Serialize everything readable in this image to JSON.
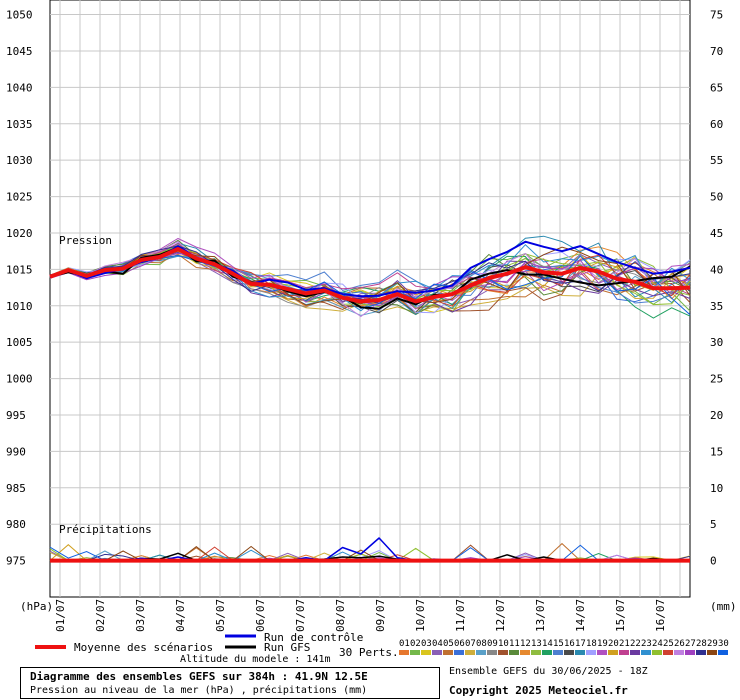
{
  "chart_data": {
    "type": "line",
    "left_axis": {
      "unit": "(hPa)",
      "ticks": [
        1050,
        1045,
        1040,
        1035,
        1030,
        1025,
        1020,
        1015,
        1010,
        1005,
        1000,
        995,
        990,
        985,
        980,
        975
      ],
      "range": [
        970,
        1052
      ]
    },
    "right_axis": {
      "unit": "(mm)",
      "ticks": [
        75,
        70,
        65,
        60,
        55,
        50,
        45,
        40,
        35,
        30,
        25,
        20,
        15,
        10,
        5,
        0
      ]
    },
    "x_axis": {
      "ticks": [
        "01/07",
        "02/07",
        "03/07",
        "04/07",
        "05/07",
        "06/07",
        "07/07",
        "08/07",
        "09/07",
        "10/07",
        "11/07",
        "12/07",
        "13/07",
        "14/07",
        "15/07",
        "16/07"
      ]
    },
    "section_labels": {
      "pressure": "Pression",
      "precip": "Précipitations"
    },
    "legend": {
      "mean": "Moyenne des scénarios",
      "control": "Run de contrôle",
      "gfs": "Run GFS",
      "perts": "30 Perts.",
      "pert_ids": [
        "01",
        "02",
        "03",
        "04",
        "05",
        "06",
        "07",
        "08",
        "09",
        "10",
        "11",
        "12",
        "13",
        "14",
        "15",
        "16",
        "17",
        "18",
        "19",
        "20",
        "21",
        "22",
        "23",
        "24",
        "25",
        "26",
        "27",
        "28",
        "29",
        "30"
      ]
    },
    "pert_colors": [
      "#e6772e",
      "#74b84a",
      "#d9c51e",
      "#8a5fb5",
      "#c07030",
      "#3a6fd8",
      "#cfae3a",
      "#5aa0c8",
      "#888888",
      "#a0522d",
      "#5a8a3a",
      "#e6892f",
      "#8fbc3f",
      "#20a060",
      "#4d7fd0",
      "#4a4a4a",
      "#2a8ab0",
      "#a0a0ff",
      "#b050c0",
      "#d0a020",
      "#c04090",
      "#6a3aa0",
      "#3090d0",
      "#90c030",
      "#d04030",
      "#c080e0",
      "#a040c0",
      "#303090",
      "#8b4513",
      "#1060e0"
    ],
    "mean_color": "#ee1111",
    "control_color": "#0000e0",
    "gfs_color": "#000000",
    "pressure_mean": [
      1014,
      1014.9,
      1014.1,
      1014.9,
      1015.1,
      1016.3,
      1016.7,
      1017.8,
      1016.5,
      1015.7,
      1014.4,
      1013,
      1012.9,
      1012.3,
      1011.7,
      1012.1,
      1011.1,
      1010.6,
      1010.8,
      1011.6,
      1010.6,
      1011.2,
      1011.6,
      1012.8,
      1013.8,
      1014.4,
      1015.3,
      1014.6,
      1014.4,
      1015.2,
      1014.7,
      1013.7,
      1013.3,
      1012.4,
      1012.4,
      1012.5
    ],
    "pressure_control": [
      1014,
      1014.8,
      1013.8,
      1014.5,
      1015.1,
      1016,
      1016.6,
      1018.2,
      1016.6,
      1015.8,
      1014.8,
      1013,
      1013.6,
      1013.2,
      1012.2,
      1012.4,
      1011.6,
      1011.3,
      1011.4,
      1012,
      1011.8,
      1012.1,
      1012.8,
      1015.2,
      1016.4,
      1017.4,
      1018.8,
      1018.1,
      1017.5,
      1018.2,
      1017.1,
      1016,
      1015.2,
      1014.4,
      1014.7,
      1015.2
    ],
    "pressure_gfs": [
      1014,
      1014.6,
      1014.1,
      1014.7,
      1014.4,
      1016.6,
      1017,
      1018,
      1016.1,
      1016.2,
      1014,
      1013.2,
      1012.9,
      1012,
      1011.3,
      1011.9,
      1011.2,
      1009.8,
      1009.6,
      1011,
      1010.2,
      1011.5,
      1011.5,
      1013.6,
      1014.4,
      1014.9,
      1014.3,
      1014.3,
      1013.7,
      1013.2,
      1012.8,
      1013.1,
      1013.4,
      1013.8,
      1014,
      1015.4
    ],
    "precip_mean": [
      0,
      0,
      0,
      0,
      0,
      0,
      0,
      0,
      0,
      0,
      0,
      0,
      0,
      0,
      0,
      0,
      0,
      0,
      0,
      0,
      0,
      0,
      0,
      0,
      0,
      0,
      0,
      0,
      0,
      0,
      0,
      0,
      0,
      0,
      0,
      0
    ],
    "precip_control": [
      0,
      0,
      0,
      0,
      0,
      0.3,
      0,
      0.5,
      0,
      0,
      0,
      0,
      0,
      0,
      0.4,
      0,
      1.8,
      0.9,
      3.1,
      0.4,
      0,
      0.2,
      0,
      0,
      0,
      0,
      0,
      0,
      0,
      0,
      0,
      0,
      0,
      0,
      0,
      0
    ],
    "precip_gfs": [
      0,
      0,
      0,
      0,
      0,
      0.3,
      0.2,
      1,
      0,
      0.2,
      0,
      0,
      0,
      0,
      0,
      0.2,
      0.5,
      0.4,
      0.6,
      0.2,
      0,
      0,
      0,
      0,
      0,
      0.8,
      0,
      0.5,
      0,
      0,
      0,
      0,
      0,
      0.3,
      0,
      0
    ]
  },
  "footer": {
    "title": "Diagramme des ensembles GEFS sur 384h : 41.9N 12.5E",
    "subtitle": "Pression au niveau de la mer (hPa) , précipitations (mm)",
    "altitude": "Altitude du modele : 141m",
    "run_info": "Ensemble GEFS du 30/06/2025 - 18Z",
    "copyright": "Copyright 2025 Meteociel.fr"
  }
}
